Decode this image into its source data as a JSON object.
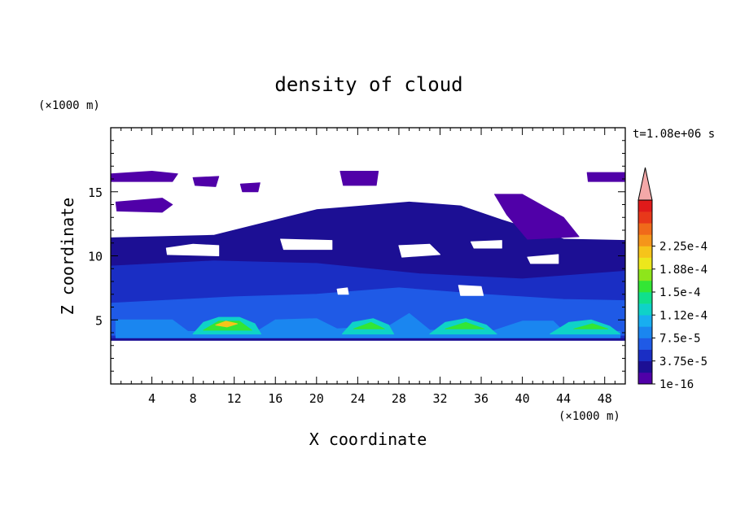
{
  "chart_data": {
    "type": "heatmap",
    "title": "density of cloud",
    "xlabel": "X coordinate",
    "ylabel": "Z coordinate",
    "x_unit": "(×1000 m)",
    "y_unit": "(×1000 m)",
    "time_label": "t=1.08e+06 s",
    "xlim": [
      0,
      50
    ],
    "ylim": [
      0,
      20
    ],
    "x_ticks": [
      4,
      8,
      12,
      16,
      20,
      24,
      28,
      32,
      36,
      40,
      44,
      48
    ],
    "y_ticks": [
      5,
      10,
      15
    ],
    "colorbar": {
      "labels": [
        "1e-16",
        "3.75e-5",
        "7.5e-5",
        "1.12e-4",
        "1.5e-4",
        "1.88e-4",
        "2.25e-4"
      ],
      "colors": [
        "#5000a8",
        "#1c0f94",
        "#1a2ec4",
        "#1f5ae6",
        "#1a86f0",
        "#18aef0",
        "#0fd2c8",
        "#10e08c",
        "#33e635",
        "#8ee51b",
        "#ece71c",
        "#f6c41a",
        "#f5951a",
        "#f06a1a",
        "#e8381a",
        "#e01a1a"
      ],
      "extend_color": "#f4a8a8"
    },
    "regions": [
      {
        "level": 1,
        "points": [
          [
            0,
            11.4
          ],
          [
            10,
            11.6
          ],
          [
            20,
            13.6
          ],
          [
            29,
            14.2
          ],
          [
            34,
            13.9
          ],
          [
            38,
            12.8
          ],
          [
            44,
            11.3
          ],
          [
            50,
            11.2
          ],
          [
            50,
            3.4
          ],
          [
            0,
            3.4
          ]
        ]
      },
      {
        "level": 0,
        "points": [
          [
            0,
            16.4
          ],
          [
            4,
            16.6
          ],
          [
            6.5,
            16.4
          ],
          [
            6,
            15.8
          ],
          [
            0,
            15.8
          ]
        ]
      },
      {
        "level": 0,
        "points": [
          [
            8,
            16.1
          ],
          [
            10.5,
            16.2
          ],
          [
            10.2,
            15.4
          ],
          [
            8.2,
            15.5
          ]
        ]
      },
      {
        "level": 0,
        "points": [
          [
            12.6,
            15.6
          ],
          [
            14.5,
            15.7
          ],
          [
            14.3,
            15.0
          ],
          [
            12.8,
            15.0
          ]
        ]
      },
      {
        "level": 0,
        "points": [
          [
            22.3,
            16.6
          ],
          [
            26,
            16.6
          ],
          [
            25.8,
            15.5
          ],
          [
            22.6,
            15.5
          ]
        ]
      },
      {
        "level": 0,
        "points": [
          [
            46.3,
            16.5
          ],
          [
            50,
            16.5
          ],
          [
            50,
            15.8
          ],
          [
            46.4,
            15.8
          ]
        ]
      },
      {
        "level": 0,
        "points": [
          [
            0.5,
            14.2
          ],
          [
            5,
            14.5
          ],
          [
            6,
            14.0
          ],
          [
            5,
            13.4
          ],
          [
            0.6,
            13.5
          ]
        ]
      },
      {
        "level": 0,
        "points": [
          [
            37.3,
            14.8
          ],
          [
            40,
            14.8
          ],
          [
            44,
            13.0
          ],
          [
            45.5,
            11.5
          ],
          [
            40.5,
            11.3
          ],
          [
            38.5,
            13.2
          ]
        ]
      },
      {
        "level": 2,
        "points": [
          [
            0,
            9.2
          ],
          [
            10,
            9.6
          ],
          [
            20,
            9.4
          ],
          [
            30,
            8.6
          ],
          [
            40,
            8.2
          ],
          [
            50,
            8.8
          ],
          [
            50,
            3.6
          ],
          [
            0,
            3.6
          ]
        ]
      },
      {
        "level": 3,
        "points": [
          [
            0,
            6.3
          ],
          [
            12,
            6.8
          ],
          [
            20,
            7.0
          ],
          [
            28,
            7.5
          ],
          [
            36,
            7.0
          ],
          [
            44,
            6.6
          ],
          [
            50,
            6.5
          ],
          [
            50,
            3.8
          ],
          [
            0,
            3.8
          ]
        ]
      },
      {
        "level": 4,
        "points": [
          [
            0.5,
            5.0
          ],
          [
            6,
            5.0
          ],
          [
            7.5,
            4.1
          ],
          [
            14,
            4.0
          ],
          [
            16,
            5.0
          ],
          [
            20,
            5.1
          ],
          [
            22,
            4.3
          ],
          [
            27,
            4.5
          ],
          [
            29,
            5.5
          ],
          [
            31,
            4.2
          ],
          [
            37,
            4.1
          ],
          [
            40,
            4.9
          ],
          [
            43,
            4.9
          ],
          [
            44,
            4.1
          ],
          [
            49.5,
            4.1
          ],
          [
            49.5,
            3.6
          ],
          [
            0.5,
            3.6
          ]
        ]
      },
      {
        "level": 6,
        "points": [
          [
            8,
            3.9
          ],
          [
            9,
            4.8
          ],
          [
            10.5,
            5.2
          ],
          [
            12.5,
            5.2
          ],
          [
            14,
            4.7
          ],
          [
            14.6,
            3.9
          ]
        ]
      },
      {
        "level": 8,
        "points": [
          [
            9,
            4.2
          ],
          [
            10.5,
            4.9
          ],
          [
            12.5,
            4.9
          ],
          [
            13.7,
            4.2
          ]
        ]
      },
      {
        "level": 11,
        "points": [
          [
            10.2,
            4.6
          ],
          [
            11.2,
            4.9
          ],
          [
            12.3,
            4.7
          ],
          [
            11.3,
            4.45
          ]
        ]
      },
      {
        "level": 6,
        "points": [
          [
            22.5,
            3.9
          ],
          [
            23.5,
            4.8
          ],
          [
            25.5,
            5.1
          ],
          [
            27,
            4.6
          ],
          [
            27.5,
            3.9
          ]
        ]
      },
      {
        "level": 8,
        "points": [
          [
            23.6,
            4.3
          ],
          [
            25.3,
            4.8
          ],
          [
            26.6,
            4.3
          ]
        ]
      },
      {
        "level": 6,
        "points": [
          [
            31,
            3.9
          ],
          [
            32.5,
            4.8
          ],
          [
            34.5,
            5.1
          ],
          [
            36.5,
            4.6
          ],
          [
            37.5,
            3.9
          ]
        ]
      },
      {
        "level": 8,
        "points": [
          [
            32.5,
            4.3
          ],
          [
            34.5,
            4.8
          ],
          [
            36.3,
            4.3
          ]
        ]
      },
      {
        "level": 6,
        "points": [
          [
            42.7,
            3.9
          ],
          [
            44.5,
            4.8
          ],
          [
            46.7,
            5.0
          ],
          [
            48.5,
            4.5
          ],
          [
            49.5,
            3.9
          ]
        ]
      },
      {
        "level": 8,
        "points": [
          [
            45,
            4.3
          ],
          [
            46.8,
            4.7
          ],
          [
            48.3,
            4.3
          ]
        ]
      }
    ],
    "gaps": [
      [
        [
          5.4,
          10.6
        ],
        [
          8,
          10.9
        ],
        [
          10.5,
          10.8
        ],
        [
          10.5,
          10.0
        ],
        [
          5.5,
          10.1
        ]
      ],
      [
        [
          16.5,
          11.3
        ],
        [
          21.5,
          11.2
        ],
        [
          21.5,
          10.5
        ],
        [
          16.8,
          10.5
        ]
      ],
      [
        [
          28,
          10.8
        ],
        [
          31,
          10.9
        ],
        [
          32,
          10.1
        ],
        [
          28.3,
          9.9
        ]
      ],
      [
        [
          35,
          11.1
        ],
        [
          38,
          11.2
        ],
        [
          38,
          10.6
        ],
        [
          35.3,
          10.6
        ]
      ],
      [
        [
          40.5,
          9.9
        ],
        [
          43.5,
          10.1
        ],
        [
          43.5,
          9.4
        ],
        [
          40.8,
          9.4
        ]
      ],
      [
        [
          33.8,
          7.7
        ],
        [
          36,
          7.6
        ],
        [
          36.2,
          6.9
        ],
        [
          34,
          6.9
        ]
      ],
      [
        [
          22,
          7.4
        ],
        [
          23,
          7.5
        ],
        [
          23.1,
          7.0
        ],
        [
          22.1,
          7.0
        ]
      ],
      [
        [
          0,
          3.3
        ],
        [
          50,
          3.3
        ],
        [
          50,
          3.0
        ],
        [
          0,
          3.0
        ]
      ]
    ]
  }
}
